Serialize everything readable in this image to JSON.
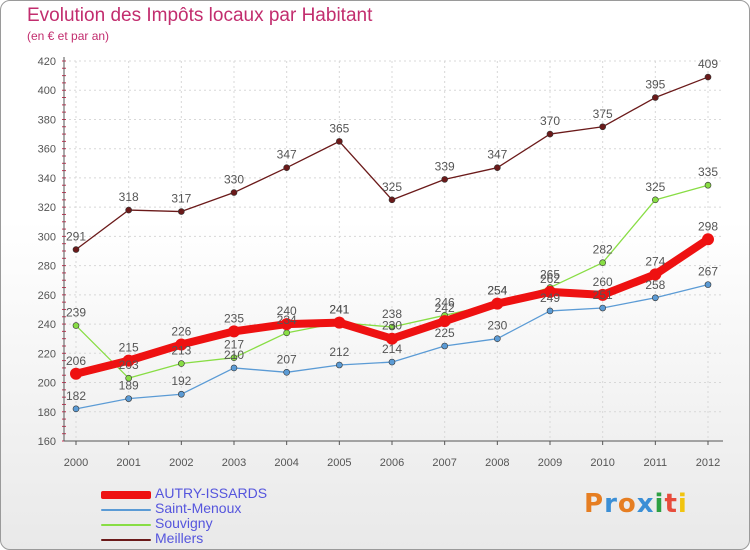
{
  "title": "Evolution des Impôts locaux par Habitant",
  "subtitle": "(en € et par an)",
  "logo": {
    "text": "Proxiti",
    "colors": [
      "#e67e22",
      "#3b8fd6",
      "#e67e22",
      "#3b8fd6",
      "#2ea043",
      "#e74c3c",
      "#f1c40f"
    ]
  },
  "colors": {
    "title": "#c22d6e",
    "axis": "#555555",
    "grid": "#d8d8d8",
    "label": "#555555",
    "legend_text": "#5555dd"
  },
  "chart_data": {
    "type": "line",
    "title": "Evolution des Impôts locaux par Habitant",
    "subtitle": "(en € et par an)",
    "xlabel": "",
    "ylabel": "",
    "x": [
      2000,
      2001,
      2002,
      2003,
      2004,
      2005,
      2006,
      2007,
      2008,
      2009,
      2010,
      2011,
      2012
    ],
    "ylim": [
      160,
      420
    ],
    "yticks": [
      160,
      180,
      200,
      220,
      240,
      260,
      280,
      300,
      320,
      340,
      360,
      380,
      400,
      420
    ],
    "grid": true,
    "legend_position": "bottom-left",
    "series": [
      {
        "name": "Meillers",
        "color": "#6b1a1a",
        "values": [
          291,
          318,
          317,
          330,
          347,
          365,
          325,
          339,
          347,
          370,
          375,
          395,
          409
        ]
      },
      {
        "name": "Souvigny",
        "color": "#88dd44",
        "values": [
          239,
          203,
          213,
          217,
          234,
          241,
          238,
          246,
          254,
          265,
          282,
          325,
          335
        ]
      },
      {
        "name": "Saint-Menoux",
        "color": "#5b9bd5",
        "values": [
          182,
          189,
          192,
          210,
          207,
          212,
          214,
          225,
          230,
          249,
          251,
          258,
          267
        ]
      },
      {
        "name": "AUTRY-ISSARDS",
        "color": "#ee1111",
        "values": [
          206,
          215,
          226,
          235,
          240,
          241,
          230,
          242,
          254,
          262,
          260,
          274,
          298
        ]
      }
    ],
    "data_labels": {
      "Meillers": [
        "291",
        "318",
        "317",
        "330",
        "347",
        "365",
        "325",
        "339",
        "347",
        "370",
        "375",
        "395",
        "409"
      ],
      "Souvigny": [
        "239",
        "203",
        "213",
        "217",
        "234",
        "241",
        "238",
        "246",
        "254",
        "265",
        "282",
        "325",
        "335"
      ],
      "Saint-Menoux": [
        "182",
        "189",
        "192",
        "210",
        "207",
        "212",
        "214",
        "225",
        "230",
        "249",
        "251",
        "258",
        "267"
      ],
      "AUTRY-ISSARDS": [
        "206",
        "215",
        "226",
        "235",
        "240",
        "241",
        "230",
        "242",
        "254",
        "262",
        "260",
        "274",
        "298"
      ]
    }
  },
  "legend": [
    {
      "name": "AUTRY-ISSARDS",
      "color": "#ee1111",
      "thick": true
    },
    {
      "name": "Saint-Menoux",
      "color": "#5b9bd5",
      "thick": false
    },
    {
      "name": "Souvigny",
      "color": "#88dd44",
      "thick": false
    },
    {
      "name": "Meillers",
      "color": "#6b1a1a",
      "thick": false
    }
  ]
}
